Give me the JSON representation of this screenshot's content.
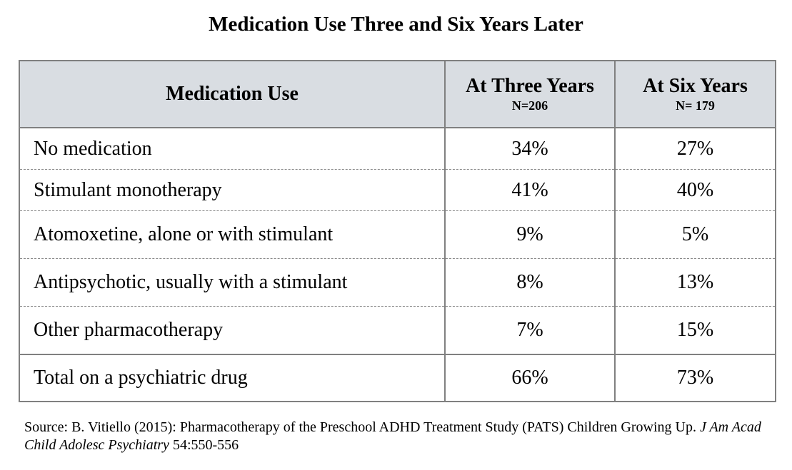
{
  "title": "Medication Use Three and Six Years Later",
  "table": {
    "headers": [
      {
        "label": "Medication Use",
        "sub": ""
      },
      {
        "label": "At Three Years",
        "sub": "N=206"
      },
      {
        "label": "At Six Years",
        "sub": "N= 179"
      }
    ],
    "rows": [
      {
        "label": "No medication",
        "three": "34%",
        "six": "27%"
      },
      {
        "label": "Stimulant monotherapy",
        "three": "41%",
        "six": "40%"
      },
      {
        "label": "Atomoxetine, alone or with stimulant",
        "three": "9%",
        "six": "5%"
      },
      {
        "label": "Antipsychotic, usually with a stimulant",
        "three": "8%",
        "six": "13%"
      },
      {
        "label": "Other pharmacotherapy",
        "three": "7%",
        "six": "15%"
      }
    ],
    "total": {
      "label": "Total on a psychiatric drug",
      "three": "66%",
      "six": "73%"
    }
  },
  "source": {
    "text": "Source: B. Vitiello (2015): Pharmacotherapy of the Preschool ADHD Treatment Study (PATS) Children Growing Up. ",
    "journal": "J Am Acad Child Adolesc Psychiatry",
    "citation": " 54:550-556"
  }
}
